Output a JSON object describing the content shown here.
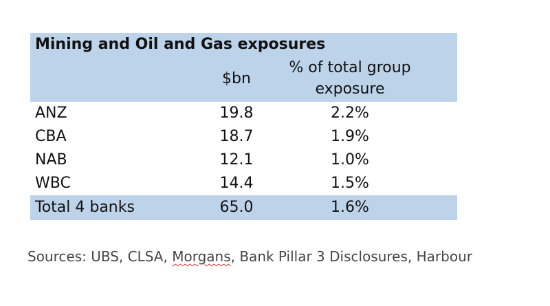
{
  "chart_data": {
    "type": "table",
    "title": "Mining and Oil and Gas exposures",
    "columns": [
      "",
      "$bn",
      "% of total group exposure"
    ],
    "column_lines": {
      "bn": "$bn",
      "pct_line1": "% of total group",
      "pct_line2": "exposure"
    },
    "rows": [
      {
        "name": "ANZ",
        "bn": "19.8",
        "pct": "2.2%"
      },
      {
        "name": "CBA",
        "bn": "18.7",
        "pct": "1.9%"
      },
      {
        "name": "NAB",
        "bn": "12.1",
        "pct": "1.0%"
      },
      {
        "name": "WBC",
        "bn": "14.4",
        "pct": "1.5%"
      }
    ],
    "total": {
      "name": "Total 4 banks",
      "bn": "65.0",
      "pct": "1.6%"
    },
    "colors": {
      "header_fill": "#bdd3ea"
    }
  },
  "sources": {
    "prefix": "Sources: UBS, CLSA, ",
    "flagged": "Morgans",
    "suffix": ", Bank Pillar 3 Disclosures, Harbour"
  }
}
